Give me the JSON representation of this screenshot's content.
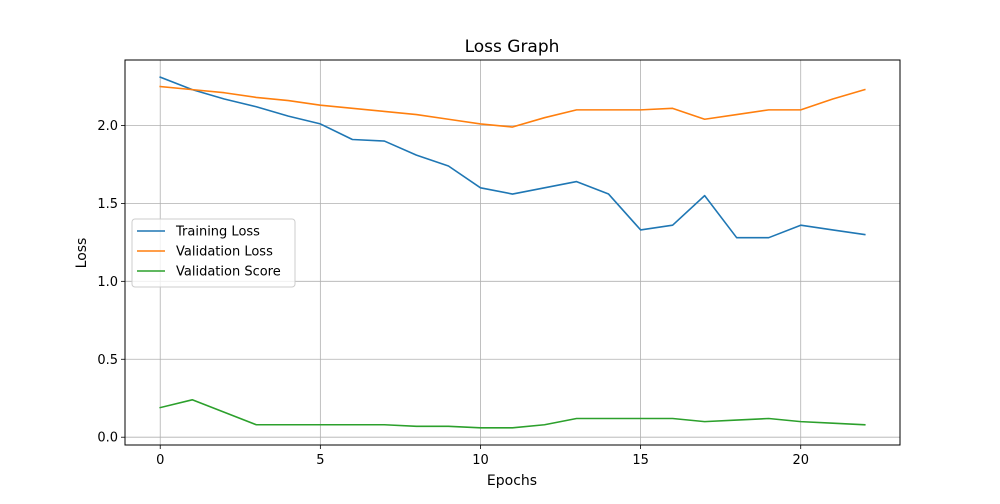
{
  "chart_data": {
    "type": "line",
    "title": "Loss Graph",
    "xlabel": "Epochs",
    "ylabel": "Loss",
    "xlim": [
      -1.1,
      23.1
    ],
    "ylim": [
      -0.05,
      2.42
    ],
    "xticks": [
      0,
      5,
      10,
      15,
      20
    ],
    "yticks": [
      0.0,
      0.5,
      1.0,
      1.5,
      2.0
    ],
    "xtick_labels": [
      "0",
      "5",
      "10",
      "15",
      "20"
    ],
    "ytick_labels": [
      "0.0",
      "0.5",
      "1.0",
      "1.5",
      "2.0"
    ],
    "grid": true,
    "legend_position": "center-left",
    "x": [
      0,
      1,
      2,
      3,
      4,
      5,
      6,
      7,
      8,
      9,
      10,
      11,
      12,
      13,
      14,
      15,
      16,
      17,
      18,
      19,
      20,
      21,
      22
    ],
    "series": [
      {
        "name": "Training Loss",
        "color": "#1f77b4",
        "values": [
          2.31,
          2.23,
          2.17,
          2.12,
          2.06,
          2.01,
          1.91,
          1.9,
          1.81,
          1.74,
          1.6,
          1.56,
          1.6,
          1.64,
          1.56,
          1.33,
          1.36,
          1.55,
          1.28,
          1.28,
          1.36,
          1.33,
          1.3
        ]
      },
      {
        "name": "Validation Loss",
        "color": "#ff7f0e",
        "values": [
          2.25,
          2.23,
          2.21,
          2.18,
          2.16,
          2.13,
          2.11,
          2.09,
          2.07,
          2.04,
          2.01,
          1.99,
          2.05,
          2.1,
          2.1,
          2.1,
          2.11,
          2.04,
          2.07,
          2.1,
          2.1,
          2.17,
          2.23
        ]
      },
      {
        "name": "Validation Score",
        "color": "#2ca02c",
        "values": [
          0.19,
          0.24,
          0.16,
          0.08,
          0.08,
          0.08,
          0.08,
          0.08,
          0.07,
          0.07,
          0.06,
          0.06,
          0.08,
          0.12,
          0.12,
          0.12,
          0.12,
          0.1,
          0.11,
          0.12,
          0.1,
          0.09,
          0.08
        ]
      }
    ]
  }
}
